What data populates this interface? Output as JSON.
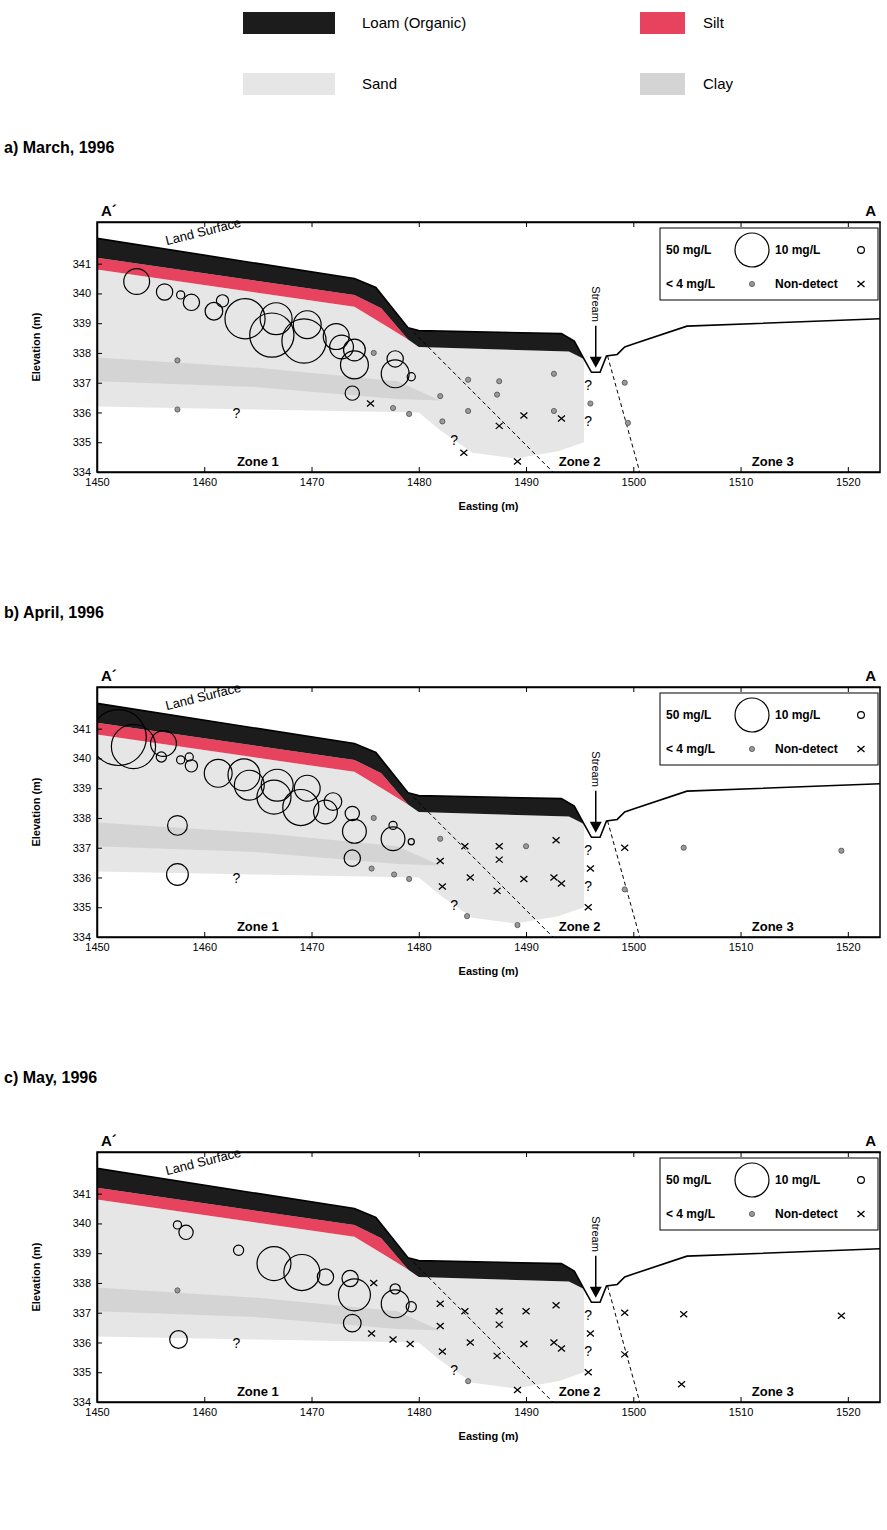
{
  "geology_legend": {
    "items": [
      {
        "label": "Loam (Organic)",
        "color": "#1c1c1c",
        "polygons": [
          {
            "x": [
              1450,
              1474,
              1476,
              1479,
              1480,
              1493.3,
              1494.5,
              1495.4,
              1494,
              1480,
              1479,
              1476.5,
              1474,
              1450
            ],
            "y": [
              341.85,
              340.5,
              340.2,
              338.85,
              338.75,
              338.65,
              338.4,
              337.8,
              338.05,
              338.2,
              338.45,
              339.5,
              339.95,
              341.2
            ]
          }
        ]
      },
      {
        "label": "Silt",
        "color": "#e8435e",
        "polygons": [
          {
            "x": [
              1450,
              1474,
              1476.5,
              1479,
              1477,
              1474,
              1450
            ],
            "y": [
              341.2,
              339.95,
              339.5,
              338.45,
              338.9,
              339.55,
              340.8
            ]
          }
        ]
      },
      {
        "label": "Sand",
        "color": "#e6e6e6",
        "polygons": [
          {
            "x": [
              1450,
              1474,
              1477,
              1479,
              1480,
              1494,
              1495.4,
              1495.4,
              1493,
              1489,
              1485,
              1482,
              1480,
              1465,
              1450
            ],
            "y": [
              340.8,
              339.55,
              338.9,
              338.45,
              338.2,
              338.05,
              337.8,
              335.0,
              334.7,
              334.45,
              334.65,
              335.4,
              336.0,
              336.1,
              336.2
            ]
          }
        ]
      },
      {
        "label": "Clay",
        "color": "#d4d4d4",
        "polygons": [
          {
            "x": [
              1450,
              1465,
              1478,
              1482,
              1478,
              1465,
              1450
            ],
            "y": [
              337.85,
              337.5,
              337.05,
              336.4,
              336.45,
              336.85,
              337.05
            ]
          }
        ]
      }
    ]
  },
  "cross_section": {
    "section_labels": {
      "left": "A´",
      "right": "A"
    },
    "land_surface": {
      "label": "Land Surface",
      "label_x": 1456.5,
      "label_y": 341.62,
      "x": [
        1450,
        1474,
        1476,
        1479,
        1480,
        1493.3,
        1494.5,
        1495.4,
        1496.1,
        1496.9,
        1497.5,
        1498.5,
        1499.2,
        1500,
        1505,
        1523
      ],
      "y": [
        341.85,
        340.5,
        340.2,
        338.85,
        338.75,
        338.65,
        338.4,
        337.8,
        337.35,
        337.35,
        337.9,
        337.95,
        338.2,
        338.3,
        338.9,
        339.15
      ]
    },
    "boundaries": [
      {
        "x": [
          1479.5,
          1492.5
        ],
        "y": [
          338.7,
          334.0
        ]
      },
      {
        "x": [
          1497.6,
          1500.6
        ],
        "y": [
          337.9,
          334.0
        ]
      }
    ],
    "stream": {
      "label": "Stream",
      "x": 1496.5,
      "y": 337.5
    },
    "zones": [
      {
        "label": "Zone 1",
        "x": 1465,
        "y": 334.2
      },
      {
        "label": "Zone 2",
        "x": 1495,
        "y": 334.2
      },
      {
        "label": "Zone 3",
        "x": 1513,
        "y": 334.2
      }
    ],
    "question_marks": {
      "label": "?",
      "x": [
        1463,
        1495.8,
        1495.8,
        1483.3
      ],
      "y": [
        335.8,
        336.75,
        335.55,
        334.9
      ]
    }
  },
  "chart_data": [
    {
      "type": "bubble",
      "title": "a) March, 1996",
      "x_label": "Easting (m)",
      "y_label": "Elevation (m)",
      "xlim": [
        1450,
        1523
      ],
      "ylim": [
        334,
        342.4
      ],
      "xticks": [
        1450,
        1460,
        1470,
        1480,
        1490,
        1500,
        1510,
        1520
      ],
      "yticks": [
        334,
        335,
        336,
        337,
        338,
        339,
        340,
        341
      ],
      "legend": "top-right",
      "size_legend": {
        "values": [
          50,
          10
        ],
        "labels": [
          "50 mg/L",
          "10 mg/L"
        ]
      },
      "series": [
        {
          "marker": "circle",
          "color": "#000000",
          "x": [
            1453.7,
            1456.3,
            1457.8,
            1458.8,
            1461.7,
            1460.9,
            1463.8,
            1466.7,
            1466.3,
            1469.6,
            1469.3,
            1472.3,
            1472.8,
            1474.0,
            1474.0,
            1477.8,
            1477.8,
            1479.3,
            1473.8
          ],
          "y": [
            340.4,
            340.05,
            339.95,
            339.7,
            339.75,
            339.4,
            339.15,
            339.15,
            338.6,
            338.95,
            338.4,
            338.55,
            338.2,
            338.1,
            337.6,
            337.8,
            337.3,
            337.2,
            336.65
          ],
          "size": [
            38,
            24,
            12,
            24,
            18,
            26,
            59,
            47,
            65,
            41,
            65,
            38,
            35,
            32,
            41,
            24,
            41,
            12,
            21
          ]
        },
        {
          "name": "< 4 mg/L",
          "marker": "dot",
          "color": "#999999",
          "x": [
            1457.5,
            1457.5,
            1475.8,
            1477.6,
            1479.1,
            1482.2,
            1482.0,
            1484.6,
            1484.6,
            1487.5,
            1487.3,
            1492.6,
            1492.6,
            1496.0,
            1499.2,
            1499.5
          ],
          "y": [
            337.75,
            336.1,
            338.0,
            336.15,
            335.95,
            335.7,
            336.55,
            337.1,
            336.05,
            337.05,
            336.6,
            337.3,
            336.05,
            336.3,
            337.0,
            335.65
          ]
        },
        {
          "name": "Non-detect",
          "marker": "cross",
          "color": "#000000",
          "x": [
            1475.5,
            1484.2,
            1487.5,
            1489.8,
            1493.3,
            1489.2
          ],
          "y": [
            336.3,
            334.65,
            335.55,
            335.9,
            335.8,
            334.35
          ]
        }
      ]
    },
    {
      "type": "bubble",
      "title": "b) April, 1996",
      "x_label": "Easting (m)",
      "y_label": "Elevation (m)",
      "xlim": [
        1450,
        1523
      ],
      "ylim": [
        334,
        342.4
      ],
      "xticks": [
        1450,
        1460,
        1470,
        1480,
        1490,
        1500,
        1510,
        1520
      ],
      "yticks": [
        334,
        335,
        336,
        337,
        338,
        339,
        340,
        341
      ],
      "legend": "top-right",
      "size_legend": {
        "values": [
          50,
          10
        ],
        "labels": [
          "50 mg/L",
          "10 mg/L"
        ]
      },
      "series": [
        {
          "marker": "circle",
          "color": "#000000",
          "x": [
            1452.0,
            1453.4,
            1456.2,
            1456.0,
            1457.8,
            1458.6,
            1458.8,
            1461.3,
            1463.7,
            1464.2,
            1466.8,
            1466.5,
            1469.0,
            1469.6,
            1472.0,
            1471.3,
            1473.8,
            1474.0,
            1477.6,
            1477.6,
            1473.8,
            1457.5,
            1457.5,
            1479.3
          ],
          "y": [
            340.7,
            340.4,
            340.5,
            340.05,
            339.95,
            340.05,
            339.75,
            339.5,
            339.45,
            339.1,
            339.1,
            338.7,
            338.35,
            339.0,
            338.55,
            338.2,
            338.15,
            337.55,
            337.75,
            337.3,
            336.65,
            337.75,
            336.1,
            337.2
          ],
          "size": [
            82,
            65,
            38,
            15,
            12,
            12,
            18,
            41,
            47,
            44,
            47,
            50,
            53,
            38,
            26,
            35,
            21,
            35,
            12,
            35,
            24,
            29,
            32,
            9
          ]
        },
        {
          "name": "< 4 mg/L",
          "marker": "dot",
          "color": "#999999",
          "x": [
            1475.8,
            1475.6,
            1477.7,
            1479.1,
            1482.0,
            1484.5,
            1490.0,
            1489.2,
            1504.7,
            1519.4,
            1499.2
          ],
          "y": [
            338.0,
            336.3,
            336.1,
            335.95,
            337.3,
            334.7,
            337.05,
            334.4,
            337.0,
            336.9,
            335.6
          ]
        },
        {
          "name": "Non-detect",
          "marker": "cross",
          "color": "#000000",
          "x": [
            1482.0,
            1482.2,
            1484.3,
            1484.8,
            1487.5,
            1487.5,
            1487.3,
            1489.8,
            1492.8,
            1492.6,
            1493.3,
            1496.0,
            1495.8,
            1499.2
          ],
          "y": [
            336.55,
            335.7,
            337.05,
            336.0,
            337.05,
            336.6,
            335.55,
            335.95,
            337.25,
            336.0,
            335.8,
            336.3,
            335.0,
            337.0
          ]
        }
      ]
    },
    {
      "type": "bubble",
      "title": "c) May, 1996",
      "x_label": "Easting (m)",
      "y_label": "Elevation (m)",
      "xlim": [
        1450,
        1523
      ],
      "ylim": [
        334,
        342.4
      ],
      "xticks": [
        1450,
        1460,
        1470,
        1480,
        1490,
        1500,
        1510,
        1520
      ],
      "yticks": [
        334,
        335,
        336,
        337,
        338,
        339,
        340,
        341
      ],
      "legend": "top-right",
      "size_legend": {
        "values": [
          50,
          10
        ],
        "labels": [
          "50 mg/L",
          "10 mg/L"
        ]
      },
      "series": [
        {
          "marker": "circle",
          "color": "#000000",
          "x": [
            1457.5,
            1458.3,
            1463.2,
            1466.5,
            1469.1,
            1471.3,
            1473.6,
            1474.0,
            1477.8,
            1477.8,
            1479.3,
            1473.8,
            1457.6
          ],
          "y": [
            339.95,
            339.7,
            339.1,
            338.65,
            338.35,
            338.2,
            338.15,
            337.6,
            337.8,
            337.3,
            337.2,
            336.65,
            336.1
          ],
          "size": [
            12,
            21,
            15,
            50,
            53,
            24,
            24,
            47,
            15,
            41,
            15,
            26,
            26
          ]
        },
        {
          "name": "< 4 mg/L",
          "marker": "dot",
          "color": "#999999",
          "x": [
            1457.5,
            1484.6
          ],
          "y": [
            337.75,
            334.7
          ]
        },
        {
          "name": "Non-detect",
          "marker": "cross",
          "color": "#000000",
          "x": [
            1475.8,
            1475.6,
            1477.6,
            1479.2,
            1482.0,
            1482.0,
            1482.2,
            1484.3,
            1484.8,
            1487.5,
            1487.5,
            1487.3,
            1490.0,
            1489.8,
            1489.2,
            1492.8,
            1492.6,
            1493.3,
            1496.0,
            1495.8,
            1499.2,
            1499.2,
            1504.7,
            1504.5,
            1519.4
          ],
          "y": [
            338.0,
            336.3,
            336.1,
            335.95,
            337.3,
            336.55,
            335.7,
            337.05,
            336.0,
            337.05,
            336.6,
            335.55,
            337.05,
            335.95,
            334.4,
            337.25,
            336.0,
            335.8,
            336.3,
            335.0,
            337.0,
            335.6,
            336.95,
            334.6,
            336.9
          ]
        }
      ]
    }
  ]
}
